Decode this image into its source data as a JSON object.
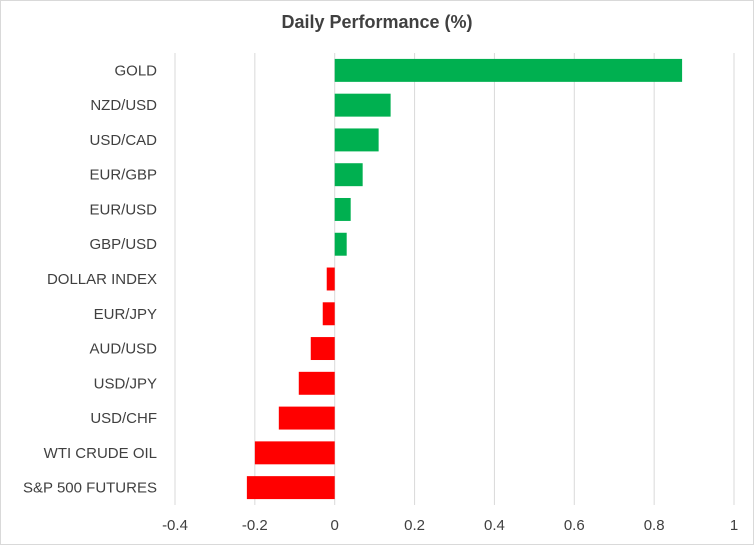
{
  "chart_data": {
    "type": "bar",
    "orientation": "horizontal",
    "title": "Daily Performance (%)",
    "xlabel": "",
    "ylabel": "",
    "xlim": [
      -0.4,
      1
    ],
    "x_ticks": [
      "-0.4",
      "-0.2",
      "0",
      "0.2",
      "0.4",
      "0.6",
      "0.8",
      "1"
    ],
    "grid": "vertical gridlines",
    "legend": "none",
    "colors": {
      "positive": "#00b050",
      "negative": "#ff0000",
      "grid": "#d9d9d9",
      "text": "#404040"
    },
    "categories": [
      "GOLD",
      "NZD/USD",
      "USD/CAD",
      "EUR/GBP",
      "EUR/USD",
      "GBP/USD",
      "DOLLAR INDEX",
      "EUR/JPY",
      "AUD/USD",
      "USD/JPY",
      "USD/CHF",
      "WTI CRUDE OIL",
      "S&P 500 FUTURES"
    ],
    "values": [
      0.87,
      0.14,
      0.11,
      0.07,
      0.04,
      0.03,
      -0.02,
      -0.03,
      -0.06,
      -0.09,
      -0.14,
      -0.2,
      -0.22
    ]
  }
}
